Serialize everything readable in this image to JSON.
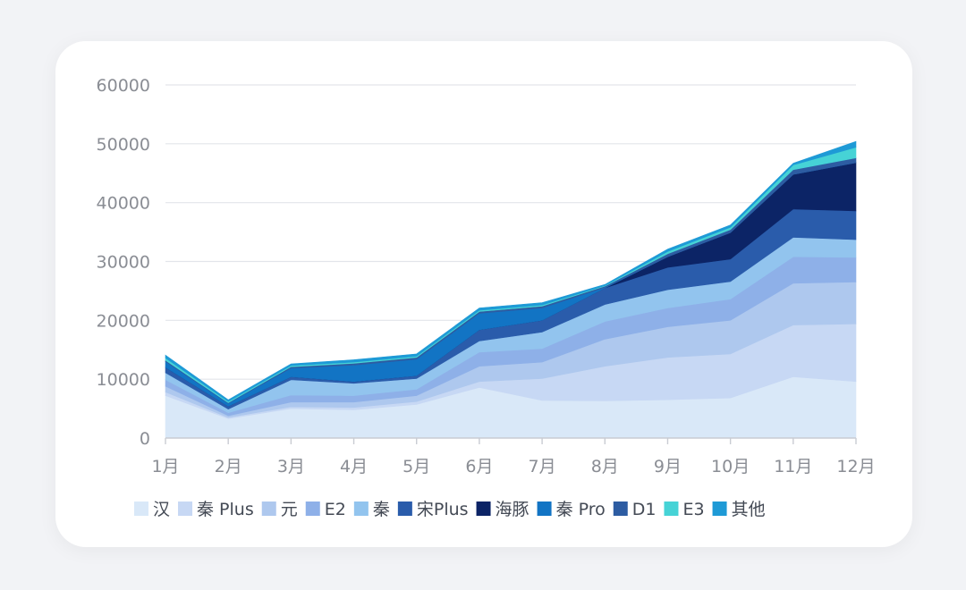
{
  "chart_data": {
    "type": "area",
    "stacked": true,
    "categories": [
      "1月",
      "2月",
      "3月",
      "4月",
      "5月",
      "6月",
      "7月",
      "8月",
      "9月",
      "10月",
      "11月",
      "12月"
    ],
    "ylim": [
      0,
      60000
    ],
    "yticks": [
      "0",
      "10000",
      "20000",
      "30000",
      "40000",
      "50000",
      "60000"
    ],
    "grid": true,
    "legend_position": "bottom",
    "series": [
      {
        "name": "汉",
        "color": "#d9e8f8",
        "values": [
          7200,
          3300,
          5000,
          4800,
          5700,
          8600,
          6400,
          6300,
          6500,
          6800,
          10400,
          9600
        ]
      },
      {
        "name": "秦 Plus",
        "color": "#c7d8f4",
        "values": [
          600,
          200,
          300,
          400,
          500,
          1000,
          3700,
          5900,
          7200,
          7500,
          8800,
          9800
        ]
      },
      {
        "name": "元",
        "color": "#aec8ee",
        "values": [
          1000,
          300,
          800,
          900,
          1000,
          2600,
          2800,
          4600,
          5200,
          5700,
          7100,
          7100
        ]
      },
      {
        "name": "E2",
        "color": "#8eb0e8",
        "values": [
          1100,
          500,
          1200,
          1100,
          1100,
          2400,
          2300,
          3000,
          3200,
          3600,
          4500,
          4200
        ]
      },
      {
        "name": "秦",
        "color": "#92c4ee",
        "values": [
          1200,
          600,
          2600,
          2100,
          1800,
          1900,
          2800,
          2900,
          3100,
          3000,
          3300,
          3000
        ]
      },
      {
        "name": "宋Plus",
        "color": "#2a5cab",
        "values": [
          900,
          500,
          500,
          300,
          500,
          1900,
          2000,
          2800,
          3800,
          3800,
          4800,
          4900
        ]
      },
      {
        "name": "海豚",
        "color": "#0c2466",
        "values": [
          0,
          0,
          0,
          0,
          0,
          0,
          0,
          0,
          1800,
          4500,
          5900,
          8200
        ]
      },
      {
        "name": "秦 Pro",
        "color": "#1274c4",
        "values": [
          1000,
          500,
          1500,
          2800,
          2800,
          2800,
          2100,
          100,
          0,
          0,
          0,
          0
        ]
      },
      {
        "name": "D1",
        "color": "#2d5ca2",
        "values": [
          200,
          100,
          200,
          300,
          300,
          300,
          300,
          200,
          500,
          500,
          800,
          800
        ]
      },
      {
        "name": "E3",
        "color": "#46d3d6",
        "values": [
          400,
          200,
          200,
          200,
          200,
          200,
          200,
          100,
          400,
          400,
          800,
          1800
        ]
      },
      {
        "name": "其他",
        "color": "#1e9ad6",
        "values": [
          500,
          300,
          300,
          400,
          400,
          400,
          400,
          200,
          400,
          400,
          300,
          1000
        ]
      }
    ]
  }
}
